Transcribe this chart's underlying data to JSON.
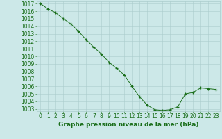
{
  "x": [
    0,
    1,
    2,
    3,
    4,
    5,
    6,
    7,
    8,
    9,
    10,
    11,
    12,
    13,
    14,
    15,
    16,
    17,
    18,
    19,
    20,
    21,
    22,
    23
  ],
  "y": [
    1017,
    1016.3,
    1015.8,
    1015.0,
    1014.3,
    1013.3,
    1012.2,
    1011.2,
    1010.3,
    1009.2,
    1008.4,
    1007.5,
    1006.0,
    1004.6,
    1003.5,
    1002.9,
    1002.8,
    1002.9,
    1003.3,
    1005.0,
    1005.2,
    1005.8,
    1005.7,
    1005.6
  ],
  "line_color": "#1a6e1a",
  "marker": "+",
  "bg_color": "#cce8e8",
  "grid_color": "#aacccc",
  "xlabel": "Graphe pression niveau de la mer (hPa)",
  "xlabel_fontsize": 6.5,
  "tick_fontsize": 5.5,
  "ylim": [
    1003,
    1017
  ],
  "xlim": [
    -0.5,
    23.5
  ],
  "yticks": [
    1003,
    1004,
    1005,
    1006,
    1007,
    1008,
    1009,
    1010,
    1011,
    1012,
    1013,
    1014,
    1015,
    1016,
    1017
  ],
  "xticks": [
    0,
    1,
    2,
    3,
    4,
    5,
    6,
    7,
    8,
    9,
    10,
    11,
    12,
    13,
    14,
    15,
    16,
    17,
    18,
    19,
    20,
    21,
    22,
    23
  ],
  "text_color": "#1a6e1a"
}
